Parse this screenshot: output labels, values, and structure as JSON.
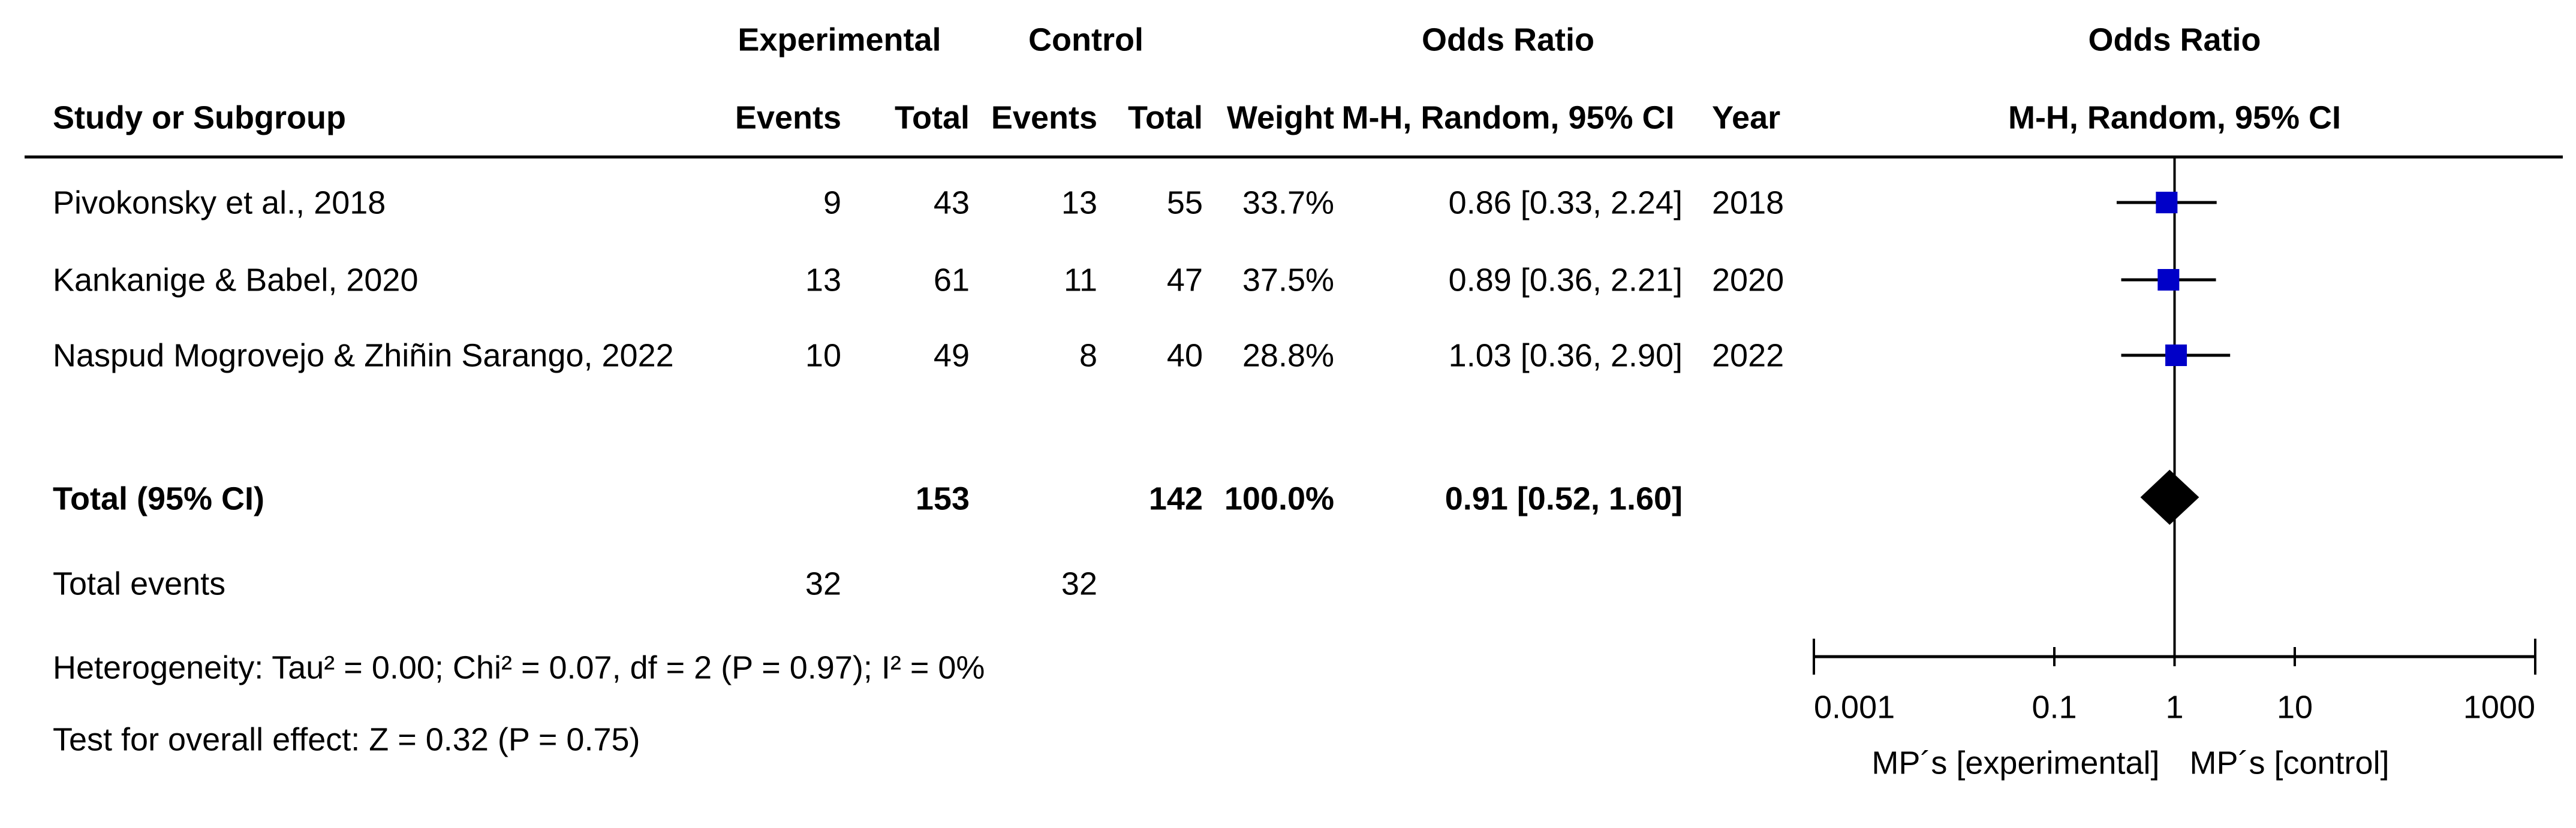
{
  "table": {
    "group_headers": [
      "Experimental",
      "Control",
      "Odds Ratio"
    ],
    "columns": [
      "Study or Subgroup",
      "Events",
      "Total",
      "Events",
      "Total",
      "Weight",
      "M-H, Random, 95% CI",
      "Year"
    ],
    "studies": [
      {
        "name": "Pivokonsky et al., 2018",
        "exp_events": 9,
        "exp_total": 43,
        "ctrl_events": 13,
        "ctrl_total": 55,
        "weight": "33.7%",
        "ci": "0.86 [0.33, 2.24]",
        "year": 2018
      },
      {
        "name": "Kankanige & Babel, 2020",
        "exp_events": 13,
        "exp_total": 61,
        "ctrl_events": 11,
        "ctrl_total": 47,
        "weight": "37.5%",
        "ci": "0.89 [0.36, 2.21]",
        "year": 2020
      },
      {
        "name": "Naspud Mogrovejo & Zhiñin Sarango, 2022",
        "exp_events": 10,
        "exp_total": 49,
        "ctrl_events": 8,
        "ctrl_total": 40,
        "weight": "28.8%",
        "ci": "1.03 [0.36, 2.90]",
        "year": 2022
      }
    ],
    "total": {
      "name": "Total (95% CI)",
      "exp_total": 153,
      "ctrl_total": 142,
      "weight": "100.0%",
      "ci": "0.91 [0.52, 1.60]"
    },
    "total_events": {
      "name": "Total events",
      "exp_events": 32,
      "ctrl_events": 32
    },
    "heterogeneity": "Heterogeneity: Tau² = 0.00; Chi² = 0.07, df = 2 (P = 0.97); I² = 0%",
    "overall_effect": "Test for overall effect: Z = 0.32 (P = 0.75)"
  },
  "chart_data": {
    "type": "forest",
    "title": "Odds Ratio",
    "subtitle": "M-H, Random, 95% CI",
    "log_scale": true,
    "xlim": [
      0.001,
      1000
    ],
    "xticks": [
      0.001,
      0.1,
      1,
      10,
      1000
    ],
    "null_line": 1,
    "estimates": [
      0.86,
      0.89,
      1.03
    ],
    "lower": [
      0.33,
      0.36,
      0.36
    ],
    "upper": [
      2.24,
      2.21,
      2.9
    ],
    "pooled": {
      "estimate": 0.91,
      "lower": 0.52,
      "upper": 1.6
    },
    "xlabel_left": "MP´s [experimental]",
    "xlabel_right": "MP´s [control]",
    "color": "#0000c8",
    "pooled_color": "#000000"
  }
}
